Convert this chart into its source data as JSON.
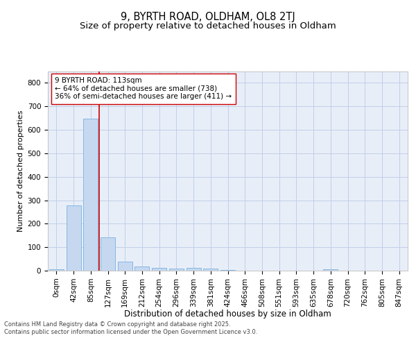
{
  "title1": "9, BYRTH ROAD, OLDHAM, OL8 2TJ",
  "title2": "Size of property relative to detached houses in Oldham",
  "xlabel": "Distribution of detached houses by size in Oldham",
  "ylabel": "Number of detached properties",
  "bin_labels": [
    "0sqm",
    "42sqm",
    "85sqm",
    "127sqm",
    "169sqm",
    "212sqm",
    "254sqm",
    "296sqm",
    "339sqm",
    "381sqm",
    "424sqm",
    "466sqm",
    "508sqm",
    "551sqm",
    "593sqm",
    "635sqm",
    "678sqm",
    "720sqm",
    "762sqm",
    "805sqm",
    "847sqm"
  ],
  "bar_values": [
    7,
    278,
    648,
    142,
    37,
    18,
    12,
    8,
    12,
    10,
    4,
    0,
    0,
    0,
    0,
    0,
    5,
    0,
    0,
    0,
    0
  ],
  "bar_color": "#c5d8f0",
  "bar_edge_color": "#7ab0de",
  "background_color": "#e8eef8",
  "grid_color": "#c0cfe8",
  "vline_color": "#cc0000",
  "annotation_line1": "9 BYRTH ROAD: 113sqm",
  "annotation_line2": "← 64% of detached houses are smaller (738)",
  "annotation_line3": "36% of semi-detached houses are larger (411) →",
  "ylim": [
    0,
    850
  ],
  "yticks": [
    0,
    100,
    200,
    300,
    400,
    500,
    600,
    700,
    800
  ],
  "footer_line1": "Contains HM Land Registry data © Crown copyright and database right 2025.",
  "footer_line2": "Contains public sector information licensed under the Open Government Licence v3.0.",
  "title1_fontsize": 10.5,
  "title2_fontsize": 9.5,
  "xlabel_fontsize": 8.5,
  "ylabel_fontsize": 8,
  "tick_fontsize": 7.5,
  "annotation_fontsize": 7.5,
  "footer_fontsize": 6.0
}
